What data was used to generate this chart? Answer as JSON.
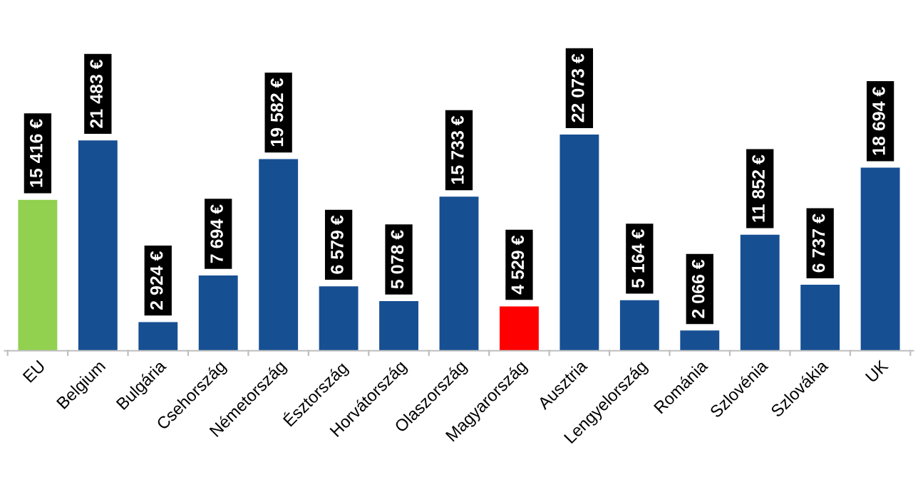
{
  "chart_data": {
    "type": "bar",
    "categories": [
      "EU",
      "Belgium",
      "Bulgária",
      "Csehország",
      "Németország",
      "Észtország",
      "Horvátország",
      "Olaszország",
      "Magyarország",
      "Ausztria",
      "Lengyelország",
      "Románia",
      "Szlovénia",
      "Szlovákia",
      "UK"
    ],
    "values": [
      15416,
      21483,
      2924,
      7694,
      19582,
      6579,
      5078,
      15733,
      4529,
      22073,
      5164,
      2066,
      11852,
      6737,
      18694
    ],
    "colors": [
      "#92d050",
      "#174f93",
      "#174f93",
      "#174f93",
      "#174f93",
      "#174f93",
      "#174f93",
      "#174f93",
      "#ff0000",
      "#174f93",
      "#174f93",
      "#174f93",
      "#174f93",
      "#174f93",
      "#174f93"
    ],
    "value_labels": [
      "15 416 €",
      "21 483 €",
      "2 924 €",
      "7 694 €",
      "19 582 €",
      "6 579 €",
      "5 078 €",
      "15 733 €",
      "4 529 €",
      "22 073 €",
      "5 164 €",
      "2 066 €",
      "11 852 €",
      "6 737 €",
      "18 694 €"
    ],
    "grid": false,
    "legend": false
  }
}
